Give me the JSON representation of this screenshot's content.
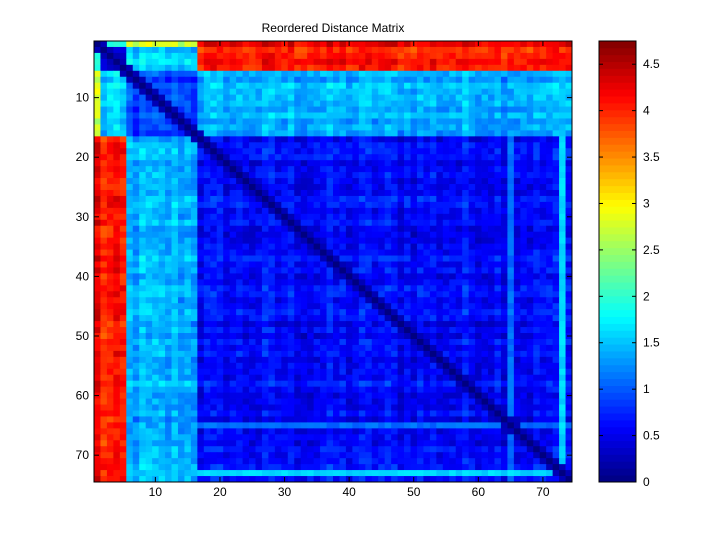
{
  "chart_data": {
    "type": "heatmap",
    "title": "Reordered Distance Matrix",
    "xlabel": "",
    "ylabel": "",
    "n": 74,
    "xlim": [
      0.5,
      74.5
    ],
    "ylim": [
      0.5,
      74.5
    ],
    "x_ticks": [
      10,
      20,
      30,
      40,
      50,
      60,
      70
    ],
    "y_ticks": [
      10,
      20,
      30,
      40,
      50,
      60,
      70
    ],
    "colormap": "jet",
    "clim": [
      0,
      4.75
    ],
    "colorbar_ticks": [
      "0",
      "0.5",
      "1",
      "1.5",
      "2",
      "2.5",
      "3",
      "3.5",
      "4",
      "4.5"
    ],
    "colorbar_tick_values": [
      0,
      0.5,
      1,
      1.5,
      2,
      2.5,
      3,
      3.5,
      4,
      4.5
    ],
    "diagonal_value": 0,
    "cluster_boundaries": [
      1,
      5,
      16,
      74
    ],
    "block_levels": [
      [
        0.4,
        1.8,
        2.7,
        4.2
      ],
      [
        1.8,
        0.35,
        1.5,
        4.0
      ],
      [
        2.7,
        1.5,
        0.9,
        1.4
      ],
      [
        4.2,
        4.0,
        1.4,
        0.6
      ]
    ],
    "notable_rows": [
      {
        "row": 73,
        "value": 1.6
      },
      {
        "row": 65,
        "value": 1.1
      }
    ],
    "notable_columns": [
      {
        "col": 65,
        "value": 1.1
      },
      {
        "col": 73,
        "value": 1.6
      }
    ]
  }
}
